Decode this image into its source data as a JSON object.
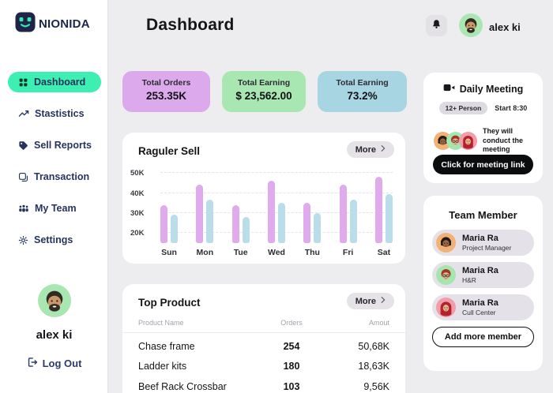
{
  "sidebar": {
    "logo_label": "NIONIDA",
    "active_bg": "#3df0b2",
    "items": [
      {
        "label": "Dashboard",
        "icon": "grid-icon",
        "active": true
      },
      {
        "label": "Stastistics",
        "icon": "trend-icon",
        "active": false
      },
      {
        "label": "Sell Reports",
        "icon": "tag-icon",
        "active": false
      },
      {
        "label": "Transaction",
        "icon": "transaction-icon",
        "active": false
      },
      {
        "label": "My Team",
        "icon": "team-icon",
        "active": false
      },
      {
        "label": "Settings",
        "icon": "gear-icon",
        "active": false
      }
    ],
    "user": {
      "name": "alex ki",
      "avatar": "man-beard",
      "avatar_bg": "#a9e7b2"
    },
    "logout_label": "Log Out"
  },
  "header": {
    "title": "Dashboard",
    "user_name": "alex ki",
    "user_avatar": "man-beard",
    "user_avatar_bg": "#a9e7b2"
  },
  "stat_cards": [
    {
      "label": "Total Orders",
      "value": "253.35K",
      "bg": "#dcaaec",
      "width": 111
    },
    {
      "label": "Total Earning",
      "value": "$ 23,562.00",
      "bg": "#a9e7b2",
      "width": 106
    },
    {
      "label": "Total Earning",
      "value": "73.2%",
      "bg": "#a7d5e2",
      "width": 113
    }
  ],
  "regular_sell": {
    "title": "Raguler Sell",
    "more_label": "More"
  },
  "chart_data": {
    "type": "bar",
    "title": "Raguler Sell",
    "categories": [
      "Sun",
      "Mon",
      "Tue",
      "Wed",
      "Thu",
      "Fri",
      "Sat"
    ],
    "series": [
      {
        "name": "purple",
        "color": "#dfabec",
        "values": [
          34,
          44,
          34,
          46,
          35,
          44,
          48
        ]
      },
      {
        "name": "blue",
        "color": "#b9dde9",
        "values": [
          29,
          36.5,
          28,
          35,
          30,
          36.5,
          39.5
        ]
      }
    ],
    "unit": "K",
    "ylim": [
      15,
      52
    ],
    "yticks": [
      20,
      30,
      40,
      50
    ],
    "ytick_labels": [
      "20K",
      "30K",
      "40K",
      "50K"
    ],
    "grid": "dashed-horizontal",
    "legend": "none"
  },
  "top_product": {
    "title": "Top Product",
    "more_label": "More",
    "columns": [
      "Product Name",
      "Orders",
      "Amout"
    ],
    "rows": [
      {
        "name": "Chase frame",
        "orders": "254",
        "amount": "50,68K"
      },
      {
        "name": "Ladder kits",
        "orders": "180",
        "amount": "18,63K"
      },
      {
        "name": "Beef Rack Crossbar",
        "orders": "103",
        "amount": "9,56K"
      }
    ]
  },
  "meeting": {
    "title": "Daily Meeting",
    "person_badge": "12+ Person",
    "start_label": "Start 8:30",
    "note": "They will conduct the meeting",
    "button_label": "Click for meeting link",
    "avatars": [
      {
        "kind": "woman-dark-hair",
        "bg": "#f2b175"
      },
      {
        "kind": "man-red-hair-glasses",
        "bg": "#a5e6af"
      },
      {
        "kind": "woman-red-hijab",
        "bg": "#f29daa"
      }
    ]
  },
  "team": {
    "title": "Team Member",
    "members": [
      {
        "name": "Maria Ra",
        "role": "Project Manager",
        "avatar": "woman-dark-hair",
        "avatar_bg": "#f2b175"
      },
      {
        "name": "Maria Ra",
        "role": "H&R",
        "avatar": "man-red-hair-glasses",
        "avatar_bg": "#a5e6af"
      },
      {
        "name": "Maria Ra",
        "role": "Cull Center",
        "avatar": "woman-red-hijab",
        "avatar_bg": "#f29daa"
      }
    ],
    "add_button_label": "Add more member"
  }
}
